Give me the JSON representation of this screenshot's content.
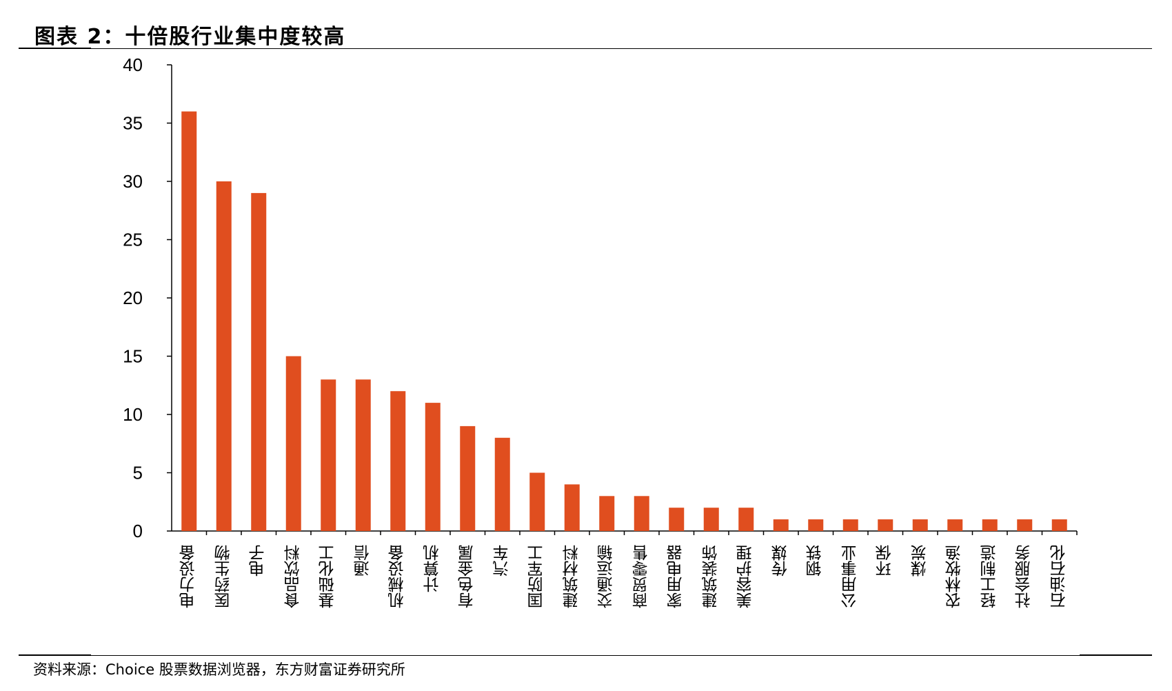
{
  "title": "图表 2：十倍股行业集中度较高",
  "source": "资料来源：Choice 股票数据浏览器，东方财富证券研究所",
  "chart_data": {
    "type": "bar",
    "title": "图表 2：十倍股行业集中度较高",
    "xlabel": "",
    "ylabel": "",
    "ylim": [
      0,
      40
    ],
    "yticks": [
      0,
      5,
      10,
      15,
      20,
      25,
      30,
      35,
      40
    ],
    "grid": false,
    "bar_color": "#E04E1F",
    "categories": [
      "电力设备",
      "医药生物",
      "电子",
      "食品饮料",
      "基础化工",
      "通信",
      "机械设备",
      "计算机",
      "有色金属",
      "汽车",
      "国防军工",
      "建筑材料",
      "交通运输",
      "商贸零售",
      "家用电器",
      "建筑装饰",
      "美容护理",
      "传媒",
      "钢铁",
      "公用事业",
      "环保",
      "煤炭",
      "农林牧渔",
      "轻工制造",
      "社会服务",
      "石油石化"
    ],
    "values": [
      36,
      30,
      29,
      15,
      13,
      13,
      12,
      11,
      9,
      8,
      5,
      4,
      3,
      3,
      2,
      2,
      2,
      1,
      1,
      1,
      1,
      1,
      1,
      1,
      1,
      1
    ]
  }
}
